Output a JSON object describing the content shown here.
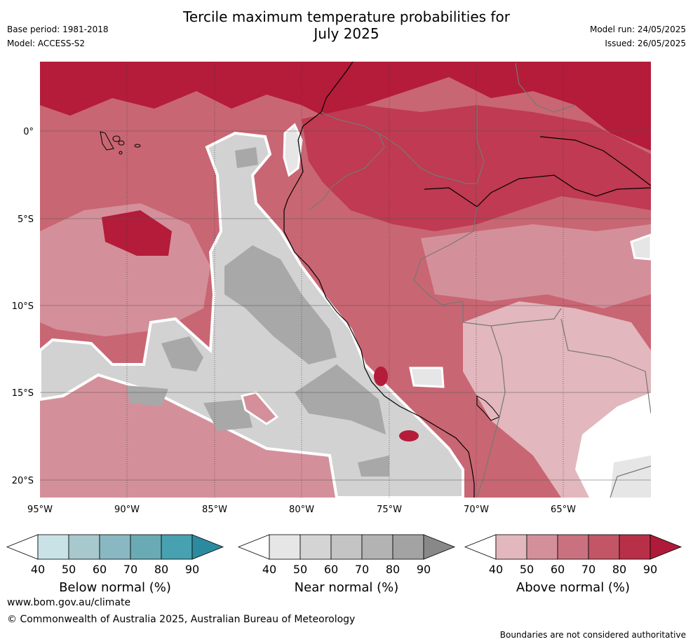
{
  "header": {
    "title_line1": "Tercile maximum temperature probabilities for",
    "title_line2": "July 2025",
    "base_period": "Base period: 1981-2018",
    "model": "Model: ACCESS-S2",
    "model_run": "Model run: 24/05/2025",
    "issued": "Issued: 26/05/2025"
  },
  "map": {
    "lon_ticks": [
      "95°W",
      "90°W",
      "85°W",
      "80°W",
      "75°W",
      "70°W",
      "65°W"
    ],
    "lat_ticks": [
      "0°",
      "5°S",
      "10°S",
      "15°S",
      "20°S"
    ],
    "colors": {
      "ocean_base": "#c96673",
      "deep": "#b41c3a",
      "high": "#bf3a52",
      "mid": "#c9606f",
      "light": "#d4909a",
      "pale": "#e2b7bd",
      "near_light": "#e6e6e6",
      "near_mid": "#d2d2d2",
      "near_dark": "#a8a8a8",
      "border": "#777777",
      "coast": "#000000"
    }
  },
  "colorbars": [
    {
      "label": "Below normal (%)",
      "ticks": [
        "40",
        "50",
        "60",
        "70",
        "80",
        "90"
      ],
      "colors": [
        "#ffffff",
        "#c9e2e6",
        "#a7c8cd",
        "#89b8c2",
        "#6aaab5",
        "#47a1b0",
        "#2c8aa0"
      ]
    },
    {
      "label": "Near normal (%)",
      "ticks": [
        "40",
        "50",
        "60",
        "70",
        "80",
        "90"
      ],
      "colors": [
        "#ffffff",
        "#e6e6e6",
        "#d4d4d4",
        "#c4c4c4",
        "#b3b3b3",
        "#a3a3a3",
        "#888888"
      ]
    },
    {
      "label": "Above normal (%)",
      "ticks": [
        "40",
        "50",
        "60",
        "70",
        "80",
        "90"
      ],
      "colors": [
        "#ffffff",
        "#e2b7bd",
        "#d4909a",
        "#c9717e",
        "#c25566",
        "#b83048",
        "#b01a39"
      ]
    }
  ],
  "footer": {
    "url": "www.bom.gov.au/climate",
    "copyright": "© Commonwealth of Australia 2025, Australian Bureau of Meteorology",
    "note": "Boundaries are not considered authoritative"
  }
}
